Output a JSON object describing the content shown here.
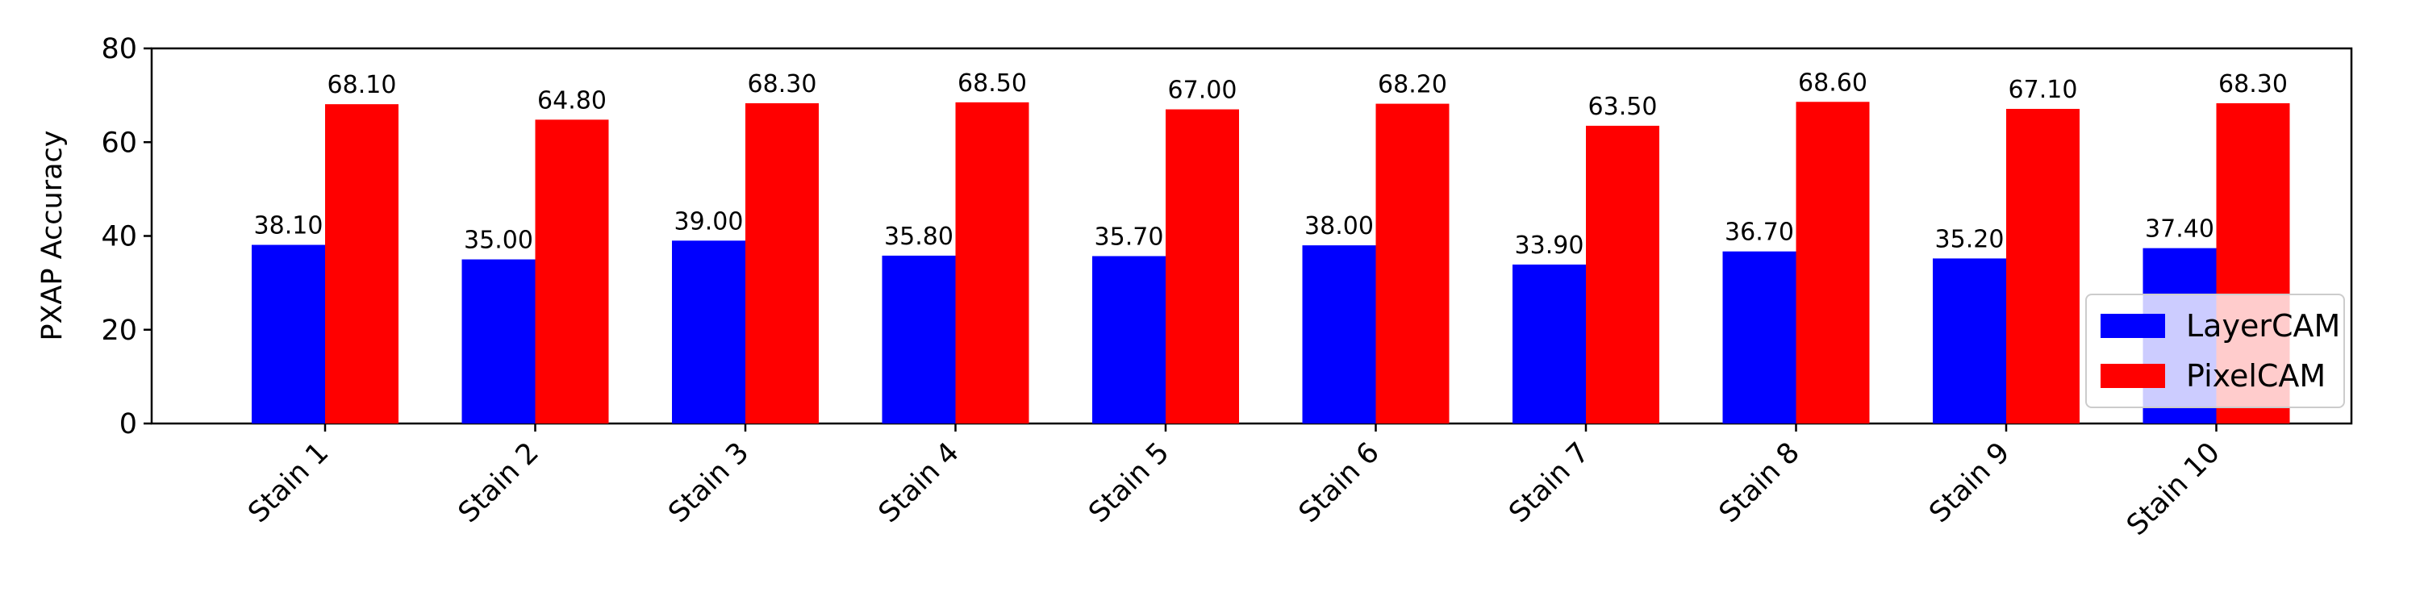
{
  "chart_data": {
    "type": "bar",
    "title": "",
    "xlabel": "",
    "ylabel": "PXAP Accuracy",
    "ylim": [
      0,
      80
    ],
    "yticks": [
      0,
      20,
      40,
      60,
      80
    ],
    "categories": [
      "Stain 1",
      "Stain 2",
      "Stain 3",
      "Stain 4",
      "Stain 5",
      "Stain 6",
      "Stain 7",
      "Stain 8",
      "Stain 9",
      "Stain 10"
    ],
    "series": [
      {
        "name": "LayerCAM",
        "color": "#0000ff",
        "values": [
          38.1,
          35.0,
          39.0,
          35.8,
          35.7,
          38.0,
          33.9,
          36.7,
          35.2,
          37.4
        ],
        "labels": [
          "38.10",
          "35.00",
          "39.00",
          "35.80",
          "35.70",
          "38.00",
          "33.90",
          "36.70",
          "35.20",
          "37.40"
        ]
      },
      {
        "name": "PixelCAM",
        "color": "#ff0000",
        "values": [
          68.1,
          64.8,
          68.3,
          68.5,
          67.0,
          68.2,
          63.5,
          68.6,
          67.1,
          68.3
        ],
        "labels": [
          "68.10",
          "64.80",
          "68.30",
          "68.50",
          "67.00",
          "68.20",
          "63.50",
          "68.60",
          "67.10",
          "68.30"
        ]
      }
    ],
    "grid": false,
    "legend_position": "lower-right"
  }
}
